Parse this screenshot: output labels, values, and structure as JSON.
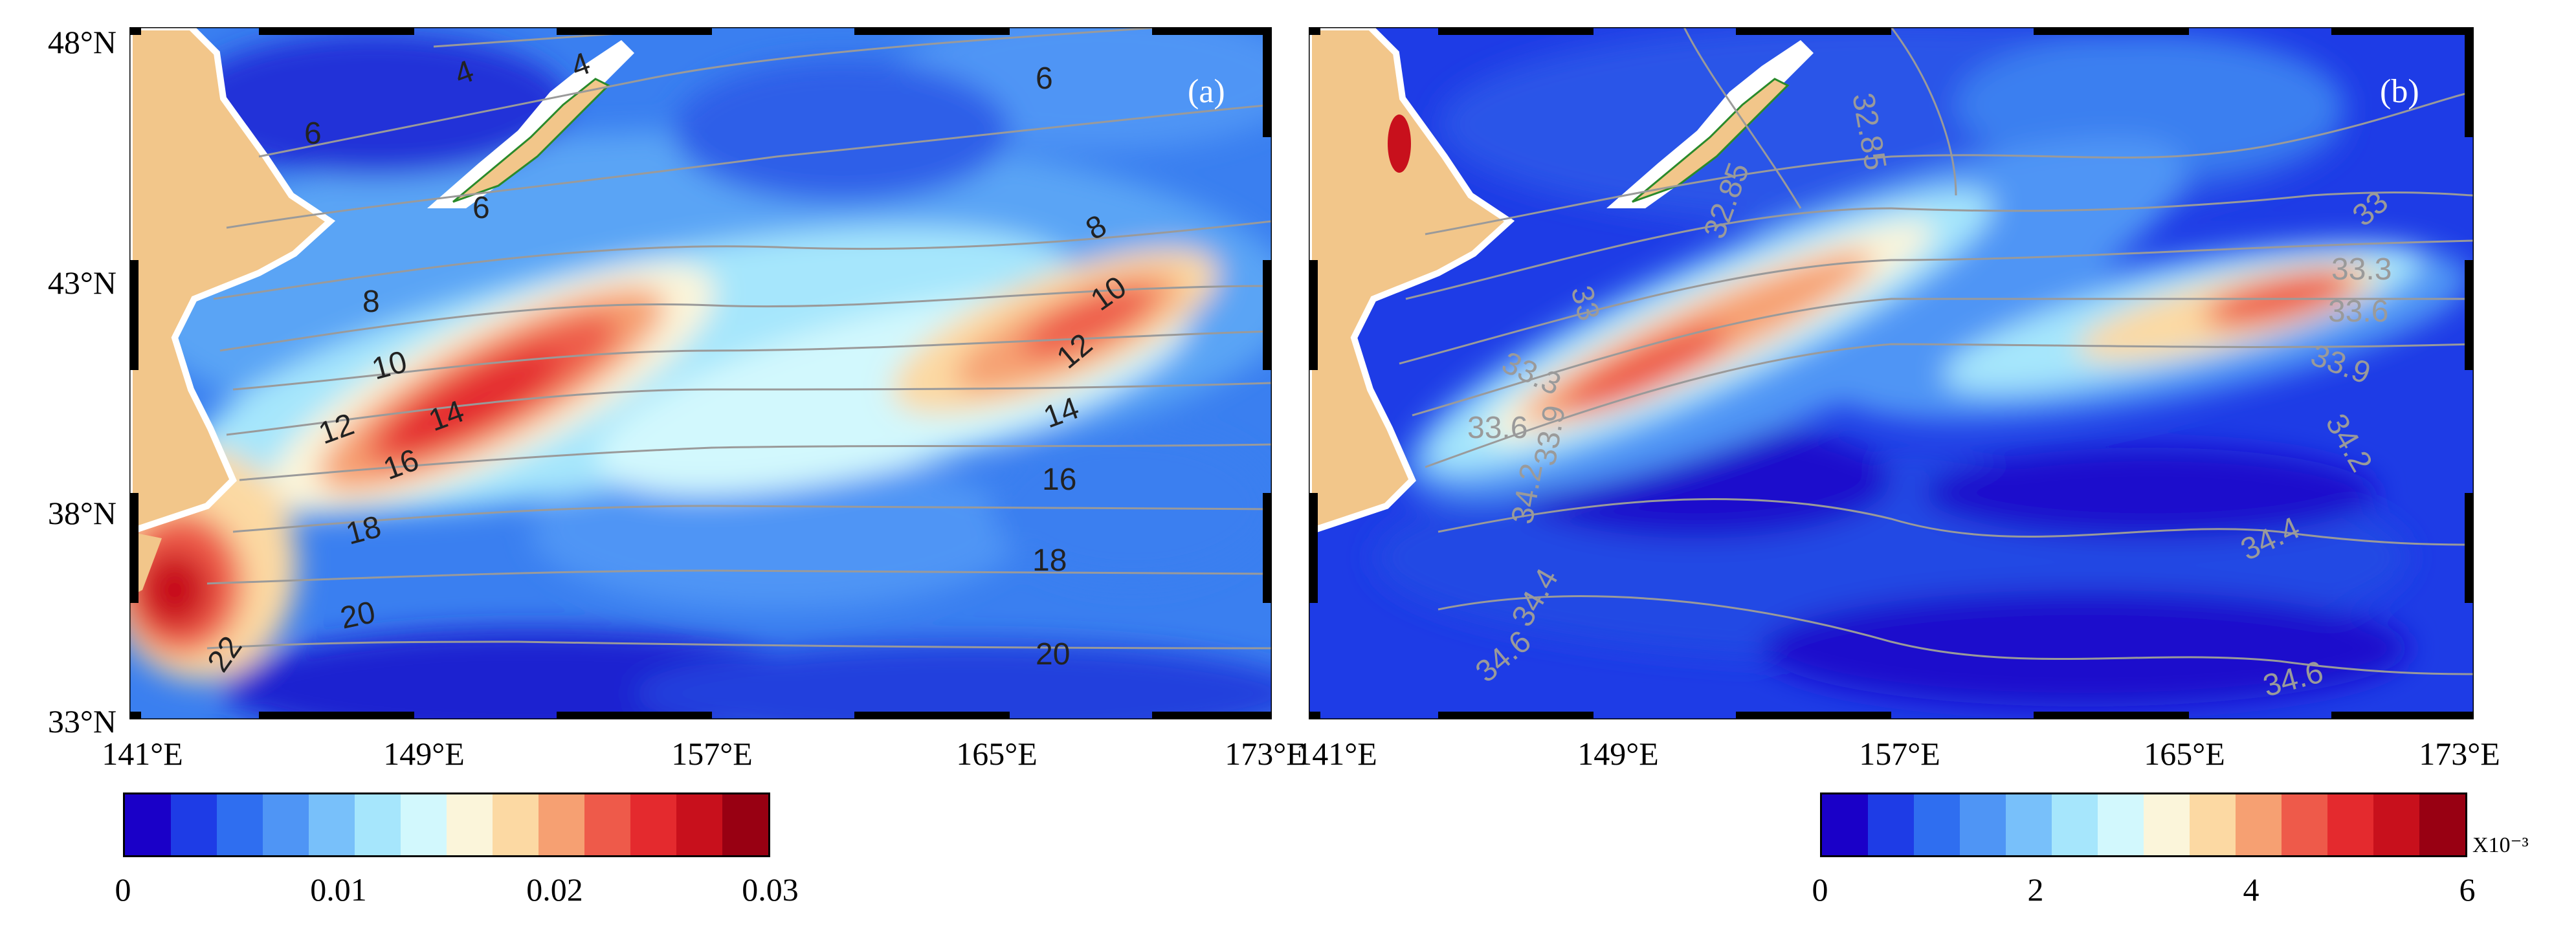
{
  "panels": [
    {
      "id": "a",
      "tag": "(a)",
      "lat_labels": [
        "48°N",
        "43°N",
        "38°N",
        "33°N"
      ],
      "lon_labels": [
        "141°E",
        "149°E",
        "157°E",
        "165°E",
        "173°E"
      ],
      "contour_labels": [
        "4",
        "4",
        "6",
        "6",
        "6",
        "8",
        "8",
        "10",
        "10",
        "12",
        "12",
        "14",
        "14",
        "16",
        "16",
        "18",
        "18",
        "20",
        "20",
        "22"
      ],
      "colorbar": {
        "ticks": [
          "0",
          "0.01",
          "0.02",
          "0.03"
        ],
        "unit": ""
      }
    },
    {
      "id": "b",
      "tag": "(b)",
      "lat_labels": [
        "48°N",
        "43°N",
        "38°N",
        "33°N"
      ],
      "lon_labels": [
        "141°E",
        "149°E",
        "157°E",
        "165°E",
        "173°E"
      ],
      "contour_labels": [
        "32.85",
        "32.85",
        "33",
        "33",
        "33.3",
        "33.3",
        "33.6",
        "33.6",
        "33.9",
        "33.9",
        "34.2",
        "34.2",
        "34.4",
        "34.4",
        "34.6",
        "34.6"
      ],
      "colorbar": {
        "ticks": [
          "0",
          "2",
          "4",
          "6"
        ],
        "unit": "X10⁻³"
      }
    }
  ],
  "palette": [
    "#1a00c8",
    "#1e3ce6",
    "#2f6ef0",
    "#4f95f5",
    "#78c0fa",
    "#a6e6fc",
    "#d2f8fd",
    "#fbf5da",
    "#fcd9a3",
    "#f6a072",
    "#ee5a4a",
    "#e42a2e",
    "#c8101c",
    "#980012"
  ],
  "land_color": "#f2c68a"
}
